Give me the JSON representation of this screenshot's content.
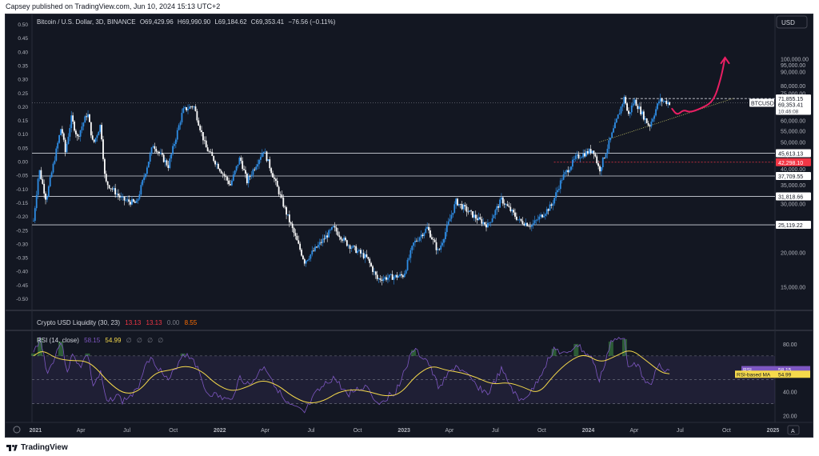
{
  "header": {
    "publisher_line": "Capsey published on TradingView.com, Jun 10, 2024 15:13 UTC+2"
  },
  "footer": {
    "brand": "TradingView"
  },
  "chart_data": [
    {
      "type": "candlestick",
      "title": "Bitcoin / U.S. Dollar, 3D, BINANCE",
      "ohlc_text": {
        "O": "O69,429.96",
        "H": "H69,990.90",
        "L": "L69,184.62",
        "C": "C69,353.41",
        "chg": "−76.56 (−0.11%)"
      },
      "currency_button": "USD",
      "x_ticks": [
        "2021",
        "Apr",
        "Jul",
        "Oct",
        "2022",
        "Apr",
        "Jul",
        "Oct",
        "2023",
        "Apr",
        "Jul",
        "Oct",
        "2024",
        "Apr",
        "Jul",
        "Oct",
        "2025"
      ],
      "x_range": [
        "2020-12-25",
        "2025-01-05"
      ],
      "y_scale": "log",
      "y_range": [
        13000,
        125000
      ],
      "right_ticks": [
        "100,000.00",
        "95,000.00",
        "90,000.00",
        "80,000.00",
        "75,000.00",
        "65,000.00",
        "60,000.00",
        "55,000.00",
        "50,000.00",
        "45,000.00",
        "40,000.00",
        "35,000.00",
        "30,000.00",
        "25,000.00",
        "20,000.00",
        "15,000.00"
      ],
      "left_ticks": [
        "0.50",
        "0.45",
        "0.40",
        "0.35",
        "0.30",
        "0.25",
        "0.20",
        "0.15",
        "0.10",
        "0.05",
        "0.00",
        "-0.05",
        "-0.10",
        "-0.15",
        "-0.20",
        "-0.25",
        "-0.30",
        "-0.35",
        "-0.40",
        "-0.45",
        "-0.50"
      ],
      "horizontal_levels": [
        {
          "value": 71855.15,
          "label": "71,855.15",
          "style": "dashed"
        },
        {
          "value": 45613.13,
          "label": "45,613.13",
          "style": "solid"
        },
        {
          "value": 37709.55,
          "label": "37,709.55",
          "style": "solid"
        },
        {
          "value": 31818.66,
          "label": "31,818.66",
          "style": "solid"
        },
        {
          "value": 25119.22,
          "label": "25,119.22",
          "style": "solid"
        },
        {
          "value": 42298.1,
          "label": "42,298.10",
          "style": "red-dashed"
        }
      ],
      "price_label": {
        "symbol": "BTCUSD",
        "value": "69,353.41",
        "countdown": "10:46:08"
      },
      "price_path": [
        [
          "2020-12-28",
          26000
        ],
        [
          "2021-01-08",
          40000
        ],
        [
          "2021-01-22",
          31000
        ],
        [
          "2021-02-21",
          57000
        ],
        [
          "2021-03-01",
          46000
        ],
        [
          "2021-03-13",
          61000
        ],
        [
          "2021-03-25",
          52000
        ],
        [
          "2021-04-14",
          64000
        ],
        [
          "2021-04-25",
          49000
        ],
        [
          "2021-05-10",
          58000
        ],
        [
          "2021-05-19",
          36000
        ],
        [
          "2021-06-22",
          31000
        ],
        [
          "2021-07-20",
          30000
        ],
        [
          "2021-08-22",
          49000
        ],
        [
          "2021-09-21",
          41000
        ],
        [
          "2021-10-20",
          65000
        ],
        [
          "2021-11-10",
          68000
        ],
        [
          "2021-12-04",
          48000
        ],
        [
          "2022-01-22",
          35000
        ],
        [
          "2022-02-10",
          44000
        ],
        [
          "2022-02-24",
          36000
        ],
        [
          "2022-03-29",
          47000
        ],
        [
          "2022-05-12",
          28000
        ],
        [
          "2022-06-18",
          18500
        ],
        [
          "2022-08-14",
          24500
        ],
        [
          "2022-09-10",
          21500
        ],
        [
          "2022-10-20",
          19000
        ],
        [
          "2022-11-09",
          16000
        ],
        [
          "2022-12-31",
          16500
        ],
        [
          "2023-01-20",
          21500
        ],
        [
          "2023-02-16",
          24500
        ],
        [
          "2023-03-10",
          20000
        ],
        [
          "2023-04-14",
          30500
        ],
        [
          "2023-05-25",
          26500
        ],
        [
          "2023-06-16",
          25000
        ],
        [
          "2023-07-13",
          31000
        ],
        [
          "2023-08-17",
          26000
        ],
        [
          "2023-09-11",
          25000
        ],
        [
          "2023-10-20",
          29500
        ],
        [
          "2023-11-10",
          37000
        ],
        [
          "2023-12-08",
          44000
        ],
        [
          "2024-01-11",
          47000
        ],
        [
          "2024-01-23",
          39500
        ],
        [
          "2024-02-15",
          52000
        ],
        [
          "2024-03-13",
          73000
        ],
        [
          "2024-03-20",
          62000
        ],
        [
          "2024-04-01",
          71000
        ],
        [
          "2024-05-01",
          57000
        ],
        [
          "2024-05-21",
          71000
        ],
        [
          "2024-06-10",
          69353.41
        ]
      ],
      "trend_line": [
        [
          "2024-01-23",
          50000
        ],
        [
          "2024-10-15",
          72000
        ]
      ],
      "projection_path": [
        [
          "2024-06-15",
          66000
        ],
        [
          "2024-06-25",
          62500
        ],
        [
          "2024-07-08",
          65500
        ],
        [
          "2024-07-20",
          64000
        ],
        [
          "2024-08-10",
          66000
        ],
        [
          "2024-09-05",
          70000
        ],
        [
          "2024-09-20",
          85000
        ],
        [
          "2024-09-28",
          101000
        ]
      ]
    },
    {
      "type": "indicator",
      "title": "Crypto USD Liquidity (30, 23)",
      "values": [
        "13.13",
        "13.13",
        "0.00",
        "8.55"
      ],
      "value_colors": [
        "#f23645",
        "#f23645",
        "#787b86",
        "#ff6d00"
      ]
    },
    {
      "type": "line",
      "title": "RSI (14, close)",
      "rsi": 58.15,
      "ma": 54.99,
      "extra_values": [
        "∅",
        "∅",
        "∅",
        "∅"
      ],
      "labels": {
        "rsi_tag": "RSI",
        "ma_tag": "RSI-based MA"
      },
      "y_ticks": [
        "80.00",
        "60.00",
        "40.00",
        "20.00"
      ],
      "y_range": [
        15,
        90
      ],
      "bands": [
        70,
        50,
        30
      ],
      "series": [
        {
          "name": "RSI",
          "color": "#7e57c2",
          "points": [
            [
              "2020-12-28",
              72
            ],
            [
              "2021-01-10",
              85
            ],
            [
              "2021-01-25",
              55
            ],
            [
              "2021-02-20",
              82
            ],
            [
              "2021-03-05",
              58
            ],
            [
              "2021-03-15",
              70
            ],
            [
              "2021-04-01",
              62
            ],
            [
              "2021-04-14",
              72
            ],
            [
              "2021-04-25",
              45
            ],
            [
              "2021-05-10",
              55
            ],
            [
              "2021-05-22",
              30
            ],
            [
              "2021-06-10",
              38
            ],
            [
              "2021-06-22",
              32
            ],
            [
              "2021-07-20",
              40
            ],
            [
              "2021-08-10",
              68
            ],
            [
              "2021-08-25",
              65
            ],
            [
              "2021-09-21",
              48
            ],
            [
              "2021-10-20",
              72
            ],
            [
              "2021-11-10",
              68
            ],
            [
              "2021-12-05",
              40
            ],
            [
              "2022-01-22",
              32
            ],
            [
              "2022-02-10",
              52
            ],
            [
              "2022-03-01",
              45
            ],
            [
              "2022-03-30",
              62
            ],
            [
              "2022-05-12",
              30
            ],
            [
              "2022-06-18",
              22
            ],
            [
              "2022-07-10",
              38
            ],
            [
              "2022-08-14",
              52
            ],
            [
              "2022-09-10",
              38
            ],
            [
              "2022-10-20",
              45
            ],
            [
              "2022-11-09",
              30
            ],
            [
              "2022-12-15",
              40
            ],
            [
              "2023-01-20",
              75
            ],
            [
              "2023-02-16",
              66
            ],
            [
              "2023-03-10",
              44
            ],
            [
              "2023-04-14",
              62
            ],
            [
              "2023-05-25",
              45
            ],
            [
              "2023-06-16",
              38
            ],
            [
              "2023-07-13",
              58
            ],
            [
              "2023-08-17",
              32
            ],
            [
              "2023-09-11",
              40
            ],
            [
              "2023-10-25",
              76
            ],
            [
              "2023-11-20",
              70
            ],
            [
              "2023-12-08",
              80
            ],
            [
              "2024-01-11",
              66
            ],
            [
              "2024-01-23",
              48
            ],
            [
              "2024-02-15",
              82
            ],
            [
              "2024-03-13",
              84
            ],
            [
              "2024-03-20",
              62
            ],
            [
              "2024-04-01",
              66
            ],
            [
              "2024-05-01",
              45
            ],
            [
              "2024-05-21",
              62
            ],
            [
              "2024-06-01",
              56
            ],
            [
              "2024-06-10",
              58.15
            ]
          ]
        },
        {
          "name": "RSI-based MA",
          "color": "#f5d94b",
          "points": [
            [
              "2020-12-28",
              70
            ],
            [
              "2021-01-15",
              75
            ],
            [
              "2021-02-10",
              68
            ],
            [
              "2021-03-10",
              66
            ],
            [
              "2021-04-10",
              66
            ],
            [
              "2021-05-01",
              60
            ],
            [
              "2021-05-25",
              48
            ],
            [
              "2021-06-25",
              38
            ],
            [
              "2021-07-25",
              40
            ],
            [
              "2021-08-25",
              56
            ],
            [
              "2021-09-25",
              58
            ],
            [
              "2021-10-25",
              62
            ],
            [
              "2021-11-25",
              58
            ],
            [
              "2021-12-25",
              46
            ],
            [
              "2022-01-25",
              40
            ],
            [
              "2022-02-25",
              44
            ],
            [
              "2022-03-25",
              50
            ],
            [
              "2022-04-25",
              46
            ],
            [
              "2022-05-25",
              36
            ],
            [
              "2022-06-25",
              30
            ],
            [
              "2022-07-25",
              32
            ],
            [
              "2022-08-25",
              40
            ],
            [
              "2022-09-25",
              42
            ],
            [
              "2022-10-25",
              40
            ],
            [
              "2022-11-25",
              36
            ],
            [
              "2022-12-25",
              38
            ],
            [
              "2023-01-25",
              54
            ],
            [
              "2023-02-25",
              62
            ],
            [
              "2023-03-25",
              58
            ],
            [
              "2023-04-25",
              56
            ],
            [
              "2023-05-25",
              52
            ],
            [
              "2023-06-25",
              46
            ],
            [
              "2023-07-25",
              48
            ],
            [
              "2023-08-25",
              44
            ],
            [
              "2023-09-25",
              38
            ],
            [
              "2023-10-25",
              54
            ],
            [
              "2023-11-25",
              66
            ],
            [
              "2023-12-25",
              72
            ],
            [
              "2024-01-25",
              64
            ],
            [
              "2024-02-25",
              70
            ],
            [
              "2024-03-25",
              76
            ],
            [
              "2024-04-25",
              66
            ],
            [
              "2024-05-25",
              56
            ],
            [
              "2024-06-10",
              54.99
            ]
          ]
        }
      ]
    }
  ]
}
